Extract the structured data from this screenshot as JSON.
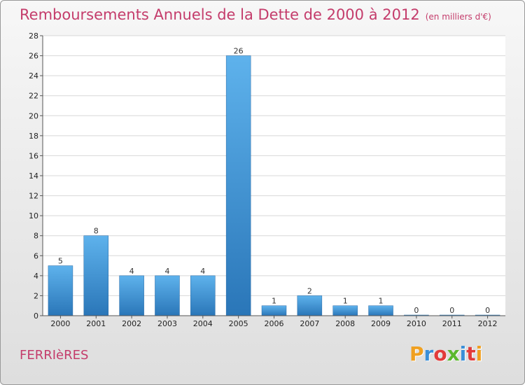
{
  "title": "Remboursements Annuels de la Dette de 2000 à 2012",
  "subtitle": "(en milliers d'€)",
  "commune": "FERRIèRES",
  "logo": {
    "text": "Proxiti",
    "colors": [
      "#f0a020",
      "#3a8fd8",
      "#e23b3b",
      "#5cb82e",
      "#3a8fd8",
      "#e23b3b",
      "#f0a020"
    ]
  },
  "chart_data": {
    "type": "bar",
    "categories": [
      "2000",
      "2001",
      "2002",
      "2003",
      "2004",
      "2005",
      "2006",
      "2007",
      "2008",
      "2009",
      "2010",
      "2011",
      "2012"
    ],
    "values": [
      5,
      8,
      4,
      4,
      4,
      26,
      1,
      2,
      1,
      1,
      0,
      0,
      0
    ],
    "title": "Remboursements Annuels de la Dette de 2000 à 2012",
    "subtitle": "(en milliers d'€)",
    "xlabel": "",
    "ylabel": "",
    "ylim": [
      0,
      28
    ],
    "yticks": [
      0,
      2,
      4,
      6,
      8,
      10,
      12,
      14,
      16,
      18,
      20,
      22,
      24,
      26,
      28
    ],
    "grid": true,
    "bar_color": "#3a8fd8"
  }
}
